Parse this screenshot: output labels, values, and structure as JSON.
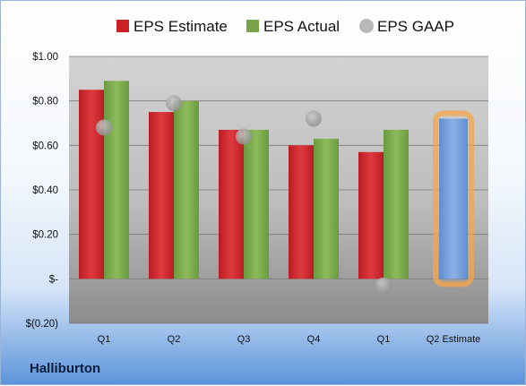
{
  "brand": "Halliburton",
  "chart_data": {
    "type": "bar",
    "categories": [
      "Q1",
      "Q2",
      "Q3",
      "Q4",
      "Q1",
      "Q2 Estimate"
    ],
    "series": [
      {
        "name": "EPS Estimate",
        "values": [
          0.85,
          0.75,
          0.67,
          0.6,
          0.57,
          null
        ],
        "color": "#cc2127"
      },
      {
        "name": "EPS Actual",
        "values": [
          0.89,
          0.8,
          0.67,
          0.63,
          0.67,
          null
        ],
        "color": "#77a34a"
      },
      {
        "name": "EPS GAAP",
        "values": [
          0.68,
          0.79,
          0.64,
          0.72,
          -0.03,
          null
        ],
        "color": "#a0a0a0",
        "marker": "circle"
      },
      {
        "name": "Q2 Estimate",
        "values": [
          null,
          null,
          null,
          null,
          null,
          0.72
        ],
        "color": "#6f9bd8",
        "highlight": "#f5a54a"
      }
    ],
    "legend": [
      "EPS Estimate",
      "EPS Actual",
      "EPS GAAP"
    ],
    "legend_placement": "top",
    "y_ticks": [
      {
        "value": 1.0,
        "label": "$1.00"
      },
      {
        "value": 0.8,
        "label": "$0.80"
      },
      {
        "value": 0.6,
        "label": "$0.60"
      },
      {
        "value": 0.4,
        "label": "$0.40"
      },
      {
        "value": 0.2,
        "label": "$0.20"
      },
      {
        "value": 0.0,
        "label": "$-"
      },
      {
        "value": -0.2,
        "label": "$(0.20)"
      }
    ],
    "ylim": [
      -0.2,
      1.0
    ],
    "grid": true
  }
}
